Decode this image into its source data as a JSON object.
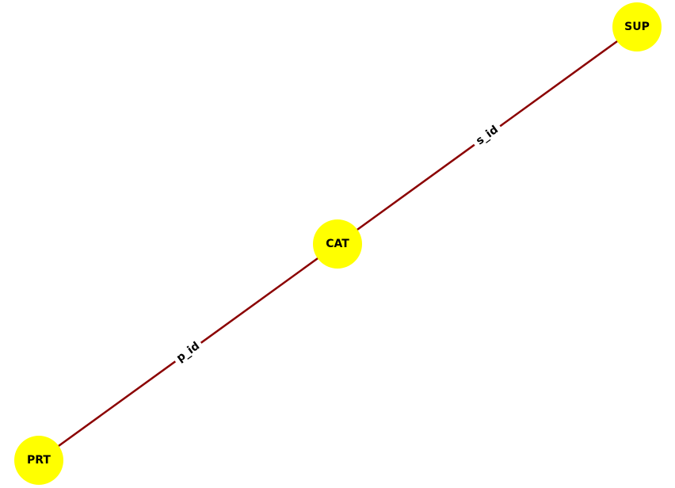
{
  "colors": {
    "node_fill": "#ffff00",
    "edge_stroke": "#8b0000",
    "label_text": "#000000",
    "background": "#ffffff"
  },
  "nodes": [
    {
      "id": "SUP",
      "label": "SUP"
    },
    {
      "id": "CAT",
      "label": "CAT"
    },
    {
      "id": "PRT",
      "label": "PRT"
    }
  ],
  "edges": [
    {
      "id": "edge-sup-cat",
      "source": "CAT",
      "target": "SUP",
      "label": "s_id"
    },
    {
      "id": "edge-cat-prt",
      "source": "PRT",
      "target": "CAT",
      "label": "p_id"
    }
  ]
}
